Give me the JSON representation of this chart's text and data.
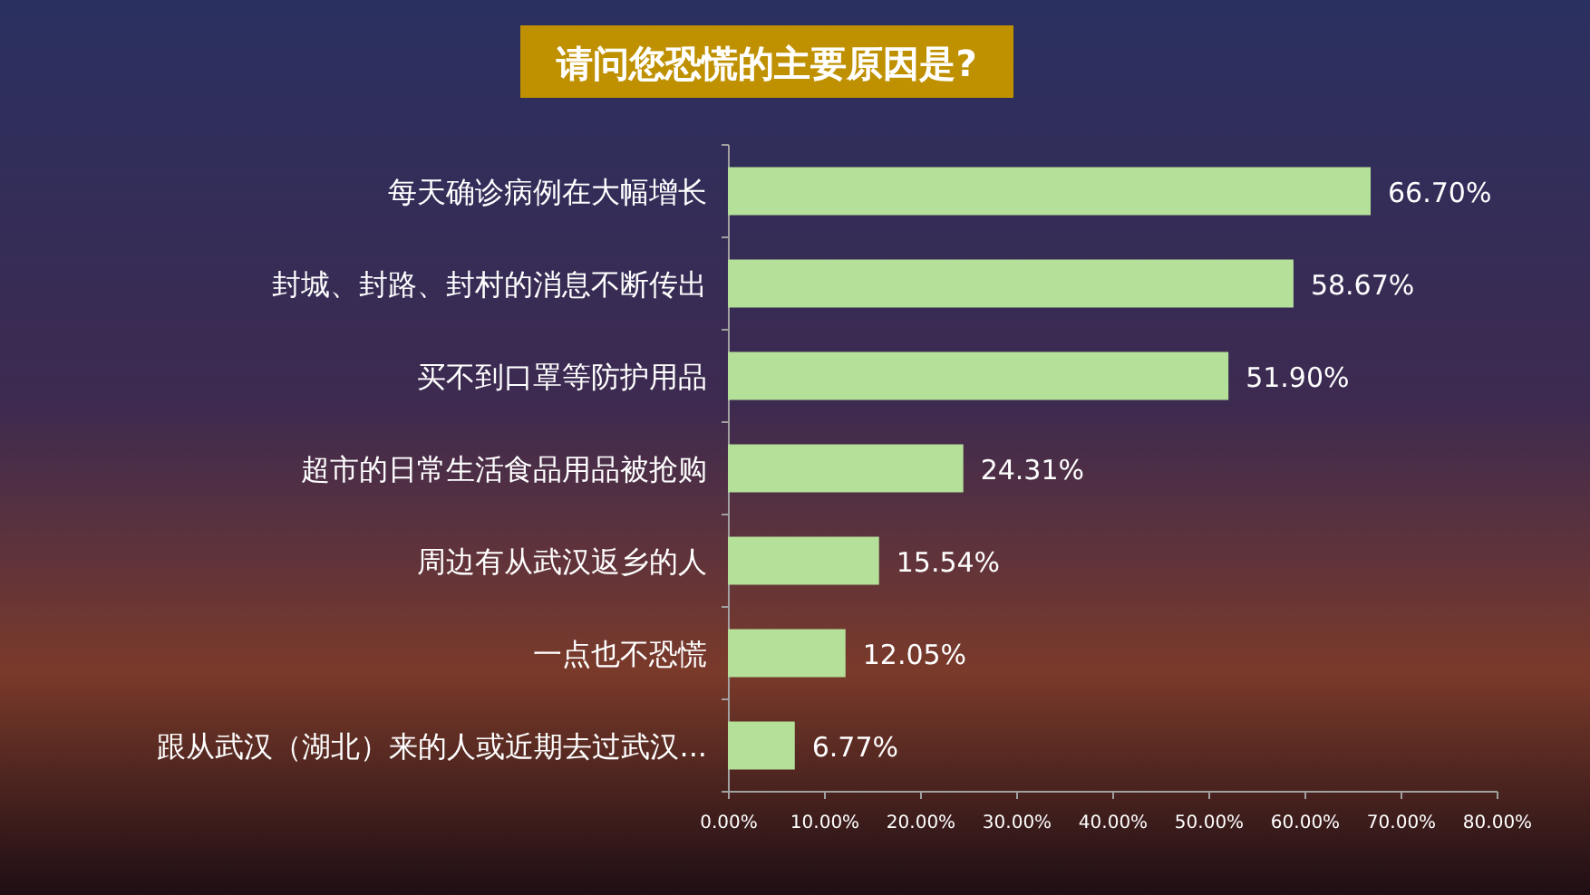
{
  "chart_data": {
    "type": "bar",
    "orientation": "horizontal",
    "title": "请问您恐慌的主要原因是?",
    "categories": [
      "每天确诊病例在大幅增长",
      "封城、封路、封村的消息不断传出",
      "买不到口罩等防护用品",
      "超市的日常生活食品用品被抢购",
      "周边有从武汉返乡的人",
      "一点也不恐慌",
      "跟从武汉（湖北）来的人或近期去过武汉..."
    ],
    "values": [
      66.7,
      58.67,
      51.9,
      24.31,
      15.54,
      12.05,
      6.77
    ],
    "value_labels": [
      "66.70%",
      "58.67%",
      "51.90%",
      "24.31%",
      "15.54%",
      "12.05%",
      "6.77%"
    ],
    "color": "#b5e09a",
    "xlim": [
      0,
      80
    ],
    "xticks": [
      {
        "value": 0,
        "label": "0.00%"
      },
      {
        "value": 10,
        "label": "10.00%"
      },
      {
        "value": 20,
        "label": "20.00%"
      },
      {
        "value": 30,
        "label": "30.00%"
      },
      {
        "value": 40,
        "label": "40.00%"
      },
      {
        "value": 50,
        "label": "50.00%"
      },
      {
        "value": 60,
        "label": "60.00%"
      },
      {
        "value": 70,
        "label": "70.00%"
      },
      {
        "value": 80,
        "label": "80.00%"
      }
    ],
    "grid": false
  }
}
